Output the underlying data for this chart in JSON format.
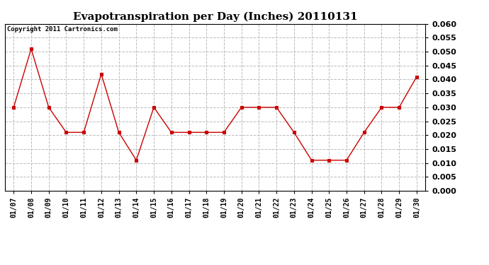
{
  "title": "Evapotranspiration per Day (Inches) 20110131",
  "copyright": "Copyright 2011 Cartronics.com",
  "x_labels": [
    "01/07",
    "01/08",
    "01/09",
    "01/10",
    "01/11",
    "01/12",
    "01/13",
    "01/14",
    "01/15",
    "01/16",
    "01/17",
    "01/18",
    "01/19",
    "01/20",
    "01/21",
    "01/22",
    "01/23",
    "01/24",
    "01/25",
    "01/26",
    "01/27",
    "01/28",
    "01/29",
    "01/30"
  ],
  "y_values": [
    0.03,
    0.051,
    0.03,
    0.021,
    0.021,
    0.042,
    0.021,
    0.011,
    0.03,
    0.021,
    0.021,
    0.021,
    0.021,
    0.03,
    0.03,
    0.03,
    0.021,
    0.011,
    0.011,
    0.011,
    0.021,
    0.03,
    0.03,
    0.041
  ],
  "line_color": "#cc0000",
  "marker": "s",
  "marker_size": 3,
  "ylim": [
    0.0,
    0.06
  ],
  "yticks": [
    0.0,
    0.005,
    0.01,
    0.015,
    0.02,
    0.025,
    0.03,
    0.035,
    0.04,
    0.045,
    0.05,
    0.055,
    0.06
  ],
  "background_color": "#ffffff",
  "plot_background": "#ffffff",
  "grid_color": "#bbbbbb",
  "grid_style": "--",
  "title_fontsize": 11,
  "copyright_fontsize": 6.5,
  "tick_fontsize": 7,
  "ytick_fontsize": 8
}
